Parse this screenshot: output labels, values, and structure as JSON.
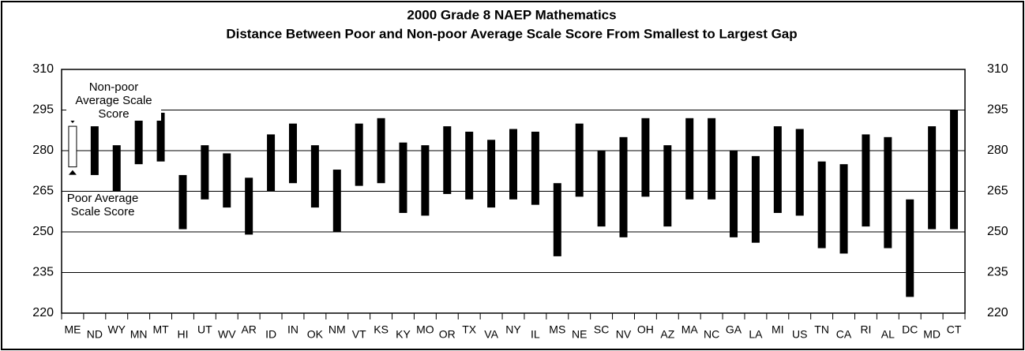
{
  "chart_data": {
    "type": "range_bar",
    "title": "2000 Grade 8 NAEP Mathematics",
    "subtitle": "Distance Between Poor and Non-poor Average Scale Score From Smallest to Largest Gap",
    "categories": [
      "ME",
      "ND",
      "WY",
      "MN",
      "MT",
      "HI",
      "UT",
      "WV",
      "AR",
      "ID",
      "IN",
      "OK",
      "NM",
      "VT",
      "KS",
      "KY",
      "MO",
      "OR",
      "TX",
      "VA",
      "NY",
      "IL",
      "MS",
      "NE",
      "SC",
      "NV",
      "OH",
      "AZ",
      "MA",
      "NC",
      "GA",
      "LA",
      "MI",
      "US",
      "TN",
      "CA",
      "RI",
      "AL",
      "DC",
      "MD",
      "CT"
    ],
    "series": [
      {
        "name": "Poor Average Scale Score",
        "color": "#000000",
        "values": [
          274,
          271,
          265,
          275,
          276,
          251,
          262,
          259,
          249,
          265,
          268,
          259,
          250,
          267,
          268,
          257,
          256,
          264,
          262,
          259,
          262,
          260,
          241,
          263,
          252,
          248,
          263,
          252,
          262,
          262,
          248,
          246,
          257,
          256,
          244,
          242,
          252,
          244,
          226,
          251,
          251
        ]
      },
      {
        "name": "Non-poor Average Scale Score",
        "color": "#000000",
        "values": [
          289,
          289,
          282,
          293,
          294,
          271,
          282,
          279,
          270,
          286,
          290,
          282,
          273,
          290,
          292,
          283,
          282,
          289,
          287,
          284,
          288,
          287,
          268,
          290,
          280,
          285,
          292,
          282,
          292,
          292,
          280,
          278,
          289,
          288,
          276,
          275,
          286,
          285,
          262,
          289,
          295
        ]
      }
    ],
    "ylim": [
      220,
      310
    ],
    "yticks": [
      220,
      235,
      250,
      265,
      280,
      295,
      310
    ],
    "grid": true
  }
}
